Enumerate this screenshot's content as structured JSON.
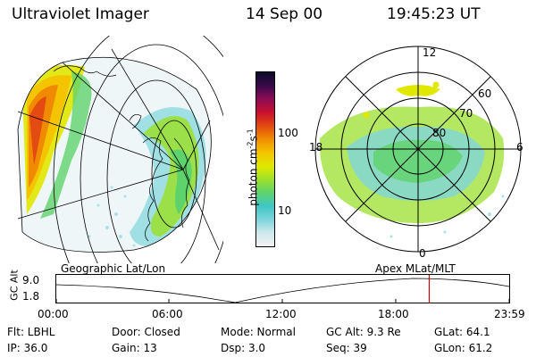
{
  "header": {
    "instrument": "Ultraviolet Imager",
    "date": "14 Sep 00",
    "time": "19:45:23 UT"
  },
  "colorbar": {
    "unit_label": "photon cm-2s-1",
    "ticks": [
      "100",
      "10"
    ],
    "scale": "log",
    "colors": [
      "#f2f2f2",
      "#cde8ec",
      "#7fd6dc",
      "#3fc7c6",
      "#5fd36b",
      "#9be02e",
      "#e1e800",
      "#f4c400",
      "#f08a00",
      "#e34b10",
      "#c8102e",
      "#8a0b56",
      "#3b0a4a",
      "#0b0b2a"
    ]
  },
  "polar_plot": {
    "mlt_labels": {
      "top": "12",
      "left": "18",
      "right": "6",
      "bottom": "0"
    },
    "lat_labels": [
      "60",
      "70",
      "80"
    ]
  },
  "timeline": {
    "y_axis_label": "GC Alt",
    "y_ticks": [
      "9.0",
      "1.8"
    ],
    "left_title": "Geographic Lat/Lon",
    "right_title": "Apex  MLat/MLT",
    "time_ticks": [
      "00:00",
      "06:00",
      "12:00",
      "18:00",
      "23:59"
    ],
    "current_time_fraction": 0.8234,
    "marker_color": "#cc0000"
  },
  "info": {
    "row1": {
      "flt": "Flt: LBHL",
      "door": "Door: Closed",
      "mode": "Mode: Normal",
      "gc_alt": "GC Alt: 9.3 Re",
      "glat": "GLat:  64.1"
    },
    "row2": {
      "ip": "IP: 36.0",
      "gain": "Gain: 13",
      "dsp": "Dsp:    3.0",
      "seq": "Seq: 39",
      "glon": "GLon:  61.2"
    }
  }
}
